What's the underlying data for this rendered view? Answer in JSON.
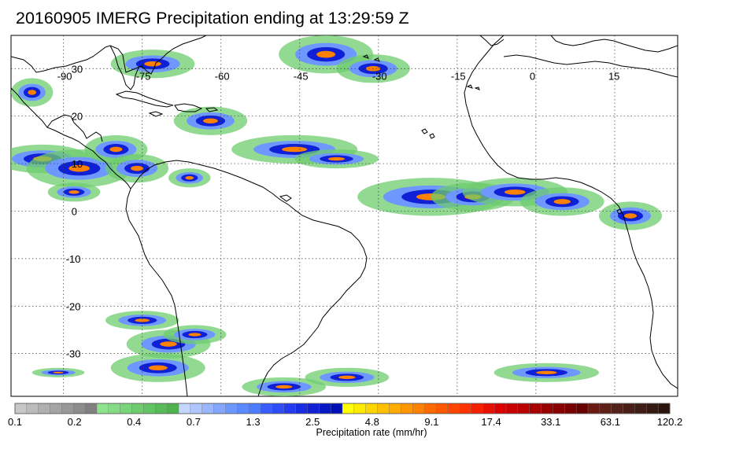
{
  "title": "20160905 IMERG Precipitation ending at 13:29:59 Z",
  "map": {
    "projection": "equirectangular",
    "lon_range": [
      -100,
      27
    ],
    "lat_range": [
      -39,
      37
    ],
    "lon_ticks": [
      "-90",
      "-75",
      "-60",
      "-45",
      "-30",
      "-15",
      "0",
      "15"
    ],
    "lat_ticks": [
      "30",
      "20",
      "10",
      "0",
      "-10",
      "-20",
      "-30"
    ],
    "gridlines": "dotted",
    "coastline_color": "#000000",
    "background": "#ffffff"
  },
  "colorbar": {
    "label": "Precipitation rate (mm/hr)",
    "tick_labels": [
      "0.1",
      "0.2",
      "0.4",
      "0.7",
      "1.3",
      "2.5",
      "4.8",
      "9.1",
      "17.4",
      "33.1",
      "63.1",
      "120.2"
    ],
    "colors": [
      "#c8c8c8",
      "#bcbcbc",
      "#b0b0b0",
      "#a4a4a4",
      "#989898",
      "#8c8c8c",
      "#808080",
      "#8fe38f",
      "#84dc84",
      "#79d579",
      "#6ecc6e",
      "#63c463",
      "#58bb58",
      "#4db34d",
      "#c6d6ff",
      "#b0c6ff",
      "#9ab6ff",
      "#84a6ff",
      "#6e98ff",
      "#5a8aff",
      "#4c7cff",
      "#3a5cff",
      "#2e4cf8",
      "#243cee",
      "#1a2ce2",
      "#1020d4",
      "#0818c6",
      "#0010b8",
      "#ffff00",
      "#ffea00",
      "#ffd500",
      "#ffc000",
      "#ffab00",
      "#ff9600",
      "#ff8100",
      "#ff6a00",
      "#ff5800",
      "#ff4600",
      "#ff3400",
      "#f42000",
      "#e81000",
      "#dc0000",
      "#c80000",
      "#b80000",
      "#a80000",
      "#980000",
      "#880000",
      "#780000",
      "#680000",
      "#6a1a10",
      "#602018",
      "#54201a",
      "#4a1e18",
      "#401c16",
      "#361812",
      "#2c140e"
    ]
  }
}
